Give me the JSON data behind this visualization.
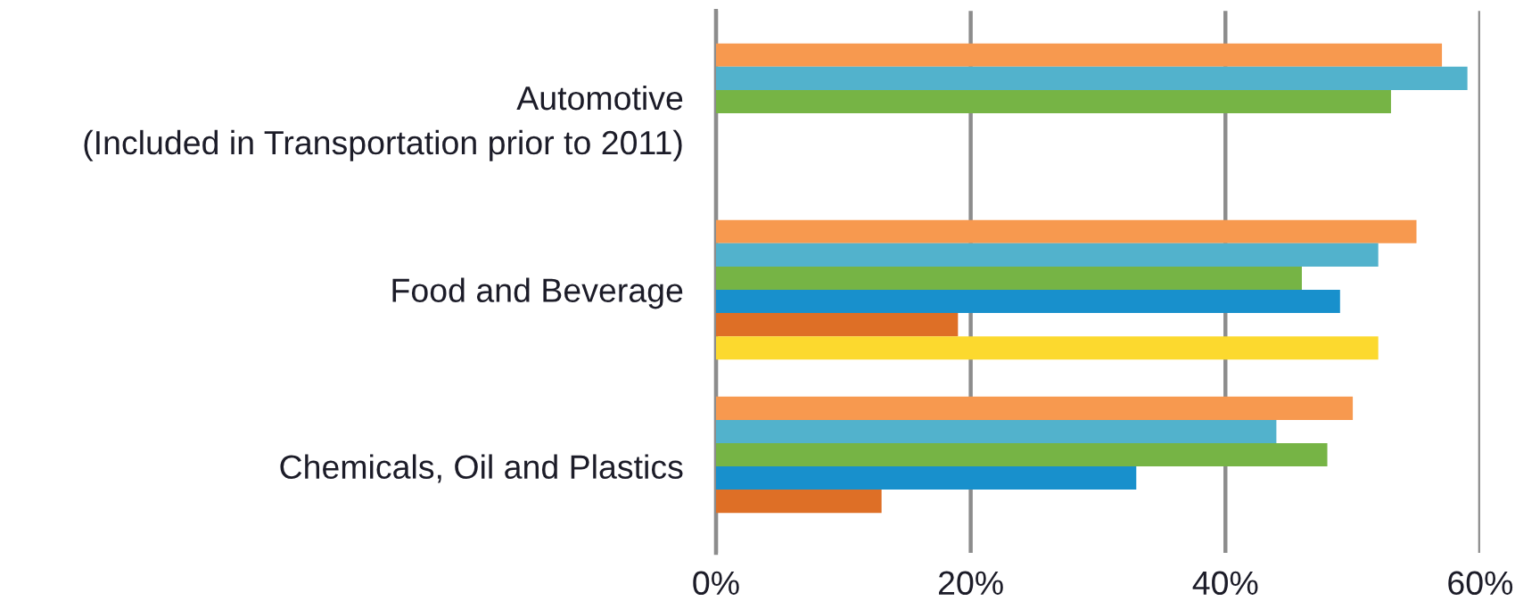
{
  "chart_data": {
    "type": "bar",
    "orientation": "horizontal",
    "categories": [
      "Automotive\n(Included in Transportation prior to 2011)",
      "Food and Beverage",
      "Chemicals, Oil and Plastics"
    ],
    "series": [
      {
        "color": "#f7994f",
        "values": [
          57,
          55,
          50
        ]
      },
      {
        "color": "#52b2cc",
        "values": [
          59,
          52,
          44
        ]
      },
      {
        "color": "#76b445",
        "values": [
          53,
          46,
          48
        ]
      },
      {
        "color": "#1890cc",
        "values": [
          null,
          49,
          33
        ]
      },
      {
        "color": "#de6f26",
        "values": [
          null,
          19,
          13
        ]
      },
      {
        "color": "#fcd92e",
        "values": [
          null,
          52,
          null
        ]
      }
    ],
    "xlim": [
      0,
      60
    ],
    "xticks": [
      {
        "value": 0,
        "label": "0%"
      },
      {
        "value": 20,
        "label": "20%"
      },
      {
        "value": 40,
        "label": "40%"
      },
      {
        "value": 60,
        "label": "60%"
      }
    ],
    "grid": "x",
    "legend": false
  }
}
